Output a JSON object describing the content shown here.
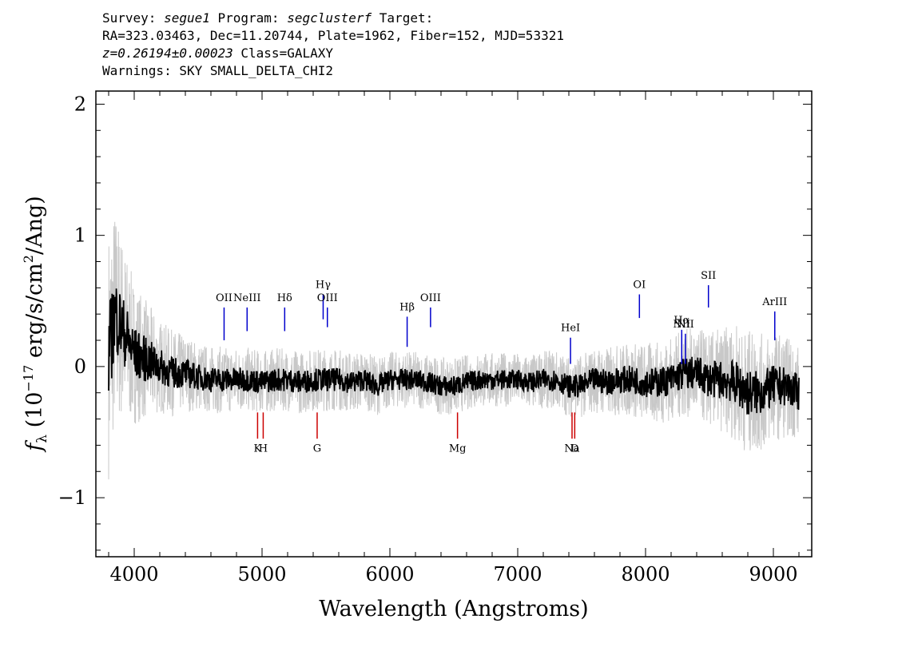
{
  "header": {
    "line1_prefix": "Survey: ",
    "survey": "segue1",
    "program_prefix": " Program: ",
    "program": "segclusterf",
    "target_suffix": " Target:",
    "line2": "RA=323.03463, Dec=11.20744, Plate=1962, Fiber=152, MJD=53321",
    "redshift": "z=0.26194±0.00023",
    "class_text": " Class=GALAXY",
    "warnings": "Warnings: SKY SMALL_DELTA_CHI2"
  },
  "chart_data": {
    "type": "line",
    "xlabel": "Wavelength (Angstroms)",
    "ylabel": "fλ (10⁻¹⁷ erg/s/cm²/Ang)",
    "xlim": [
      3700,
      9300
    ],
    "ylim": [
      -1.45,
      2.1
    ],
    "x_ticks": [
      4000,
      5000,
      6000,
      7000,
      8000,
      9000
    ],
    "y_ticks": [
      -1,
      0,
      1,
      2
    ],
    "y_tick_labels": [
      "−1",
      "0",
      "1",
      "2"
    ],
    "grid": false,
    "colors": {
      "flux": "#000000",
      "error": "#c8c8c8",
      "emission": "#0000cc",
      "absorption": "#cc0000"
    },
    "series": [
      {
        "role": "flux",
        "x": [
          3800,
          3850,
          3900,
          3950,
          4000,
          4100,
          4200,
          4300,
          4400,
          4500,
          4600,
          4700,
          4800,
          4900,
          5000,
          5100,
          5200,
          5300,
          5400,
          5500,
          5600,
          5700,
          5800,
          5900,
          6000,
          6100,
          6200,
          6300,
          6400,
          6500,
          6600,
          6700,
          6800,
          6900,
          7000,
          7100,
          7200,
          7300,
          7400,
          7500,
          7600,
          7700,
          7800,
          7900,
          8000,
          8100,
          8200,
          8300,
          8400,
          8500,
          8600,
          8700,
          8800,
          8900,
          9000,
          9100,
          9200
        ],
        "y": [
          0.1,
          0.4,
          0.3,
          0.2,
          0.1,
          0.05,
          0.0,
          -0.05,
          -0.05,
          -0.08,
          -0.1,
          -0.1,
          -0.1,
          -0.1,
          -0.12,
          -0.1,
          -0.1,
          -0.12,
          -0.1,
          -0.1,
          -0.1,
          -0.12,
          -0.1,
          -0.15,
          -0.1,
          -0.1,
          -0.1,
          -0.12,
          -0.15,
          -0.15,
          -0.12,
          -0.1,
          -0.1,
          -0.1,
          -0.1,
          -0.12,
          -0.1,
          -0.1,
          -0.15,
          -0.15,
          -0.1,
          -0.12,
          -0.1,
          -0.1,
          -0.12,
          -0.12,
          -0.1,
          -0.05,
          -0.05,
          -0.1,
          -0.1,
          -0.12,
          -0.2,
          -0.2,
          -0.15,
          -0.15,
          -0.2
        ]
      },
      {
        "role": "error",
        "x": [
          3800,
          3900,
          4000,
          4200,
          4500,
          5000,
          5500,
          6000,
          6500,
          7000,
          7500,
          8000,
          8500,
          8800,
          9000,
          9200
        ],
        "y": [
          0.8,
          0.6,
          0.45,
          0.3,
          0.22,
          0.2,
          0.2,
          0.18,
          0.18,
          0.17,
          0.2,
          0.25,
          0.3,
          0.4,
          0.35,
          0.3
        ]
      }
    ],
    "emission_lines": [
      {
        "label": "OII",
        "x": 4703
      },
      {
        "label": "NeIII",
        "x": 4883
      },
      {
        "label": "Hδ",
        "x": 5177
      },
      {
        "label": "Hγ",
        "x": 5478
      },
      {
        "label": "OIII",
        "x": 5511
      },
      {
        "label": "Hβ",
        "x": 6135
      },
      {
        "label": "OIII",
        "x": 6318
      },
      {
        "label": "HeI",
        "x": 7413
      },
      {
        "label": "OI",
        "x": 7952
      },
      {
        "label": "NII",
        "x": 8283
      },
      {
        "label": "Hα",
        "x": 8283
      },
      {
        "label": "NII",
        "x": 8312
      },
      {
        "label": "SII",
        "x": 8492
      },
      {
        "label": "ArIII",
        "x": 9011
      }
    ],
    "absorption_lines": [
      {
        "label": "K",
        "x": 4965
      },
      {
        "label": "H",
        "x": 5009
      },
      {
        "label": "G",
        "x": 5431
      },
      {
        "label": "Mg",
        "x": 6529
      },
      {
        "label": "Na",
        "x": 7425
      },
      {
        "label": "D",
        "x": 7446
      }
    ]
  }
}
